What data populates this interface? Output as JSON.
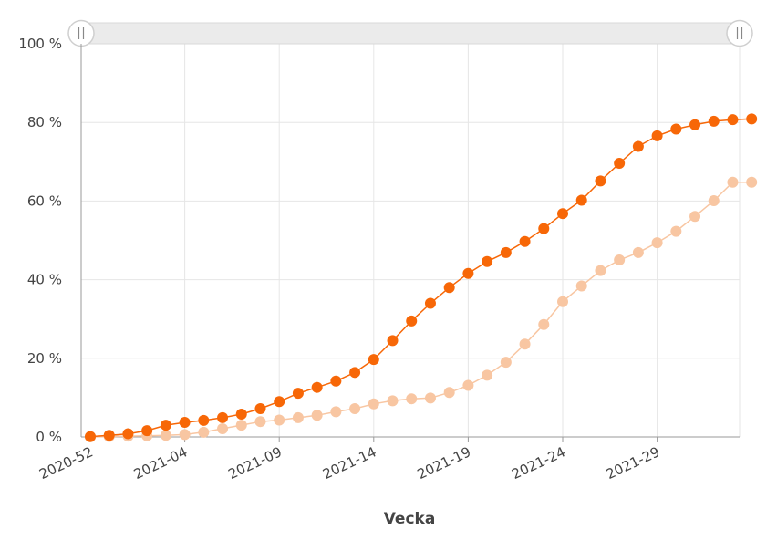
{
  "chart_data": {
    "type": "line",
    "title": "",
    "xlabel": "Vecka",
    "ylabel": "",
    "ylim": [
      0,
      100
    ],
    "yticks": [
      0,
      20,
      40,
      60,
      80,
      100
    ],
    "ytick_suffix": " %",
    "x": [
      "2020-52",
      "2020-53",
      "2021-01",
      "2021-02",
      "2021-03",
      "2021-04",
      "2021-05",
      "2021-06",
      "2021-07",
      "2021-08",
      "2021-09",
      "2021-10",
      "2021-11",
      "2021-12",
      "2021-13",
      "2021-14",
      "2021-15",
      "2021-16",
      "2021-17",
      "2021-18",
      "2021-19",
      "2021-20",
      "2021-21",
      "2021-22",
      "2021-23",
      "2021-24",
      "2021-25",
      "2021-26",
      "2021-27",
      "2021-28",
      "2021-29",
      "2021-30",
      "2021-31",
      "2021-32",
      "2021-33",
      "2021-34"
    ],
    "xtick_labels": [
      "2020-52",
      "2021-04",
      "2021-09",
      "2021-14",
      "2021-19",
      "2021-24",
      "2021-29"
    ],
    "grid": true,
    "legend": "none",
    "range_slider": true,
    "series": [
      {
        "color": "#f76707",
        "values": [
          0.1,
          0.4,
          0.8,
          1.6,
          3.0,
          3.7,
          4.2,
          4.9,
          5.8,
          7.2,
          9.0,
          11.1,
          12.6,
          14.2,
          16.4,
          19.7,
          24.5,
          29.5,
          34.0,
          38.0,
          41.6,
          44.6,
          46.9,
          49.7,
          53.0,
          56.8,
          60.2,
          65.1,
          69.6,
          73.9,
          76.6,
          78.3,
          79.4,
          80.3,
          80.7,
          80.9
        ]
      },
      {
        "color": "#f8c6a2",
        "values": [
          0.0,
          0.1,
          0.2,
          0.3,
          0.4,
          0.6,
          1.2,
          2.1,
          3.0,
          3.9,
          4.3,
          4.9,
          5.5,
          6.4,
          7.2,
          8.4,
          9.2,
          9.7,
          9.9,
          11.3,
          13.1,
          15.7,
          19.0,
          23.6,
          28.6,
          34.4,
          38.4,
          42.3,
          45.0,
          46.9,
          49.4,
          52.3,
          56.1,
          60.1,
          64.8,
          64.8
        ]
      }
    ]
  }
}
